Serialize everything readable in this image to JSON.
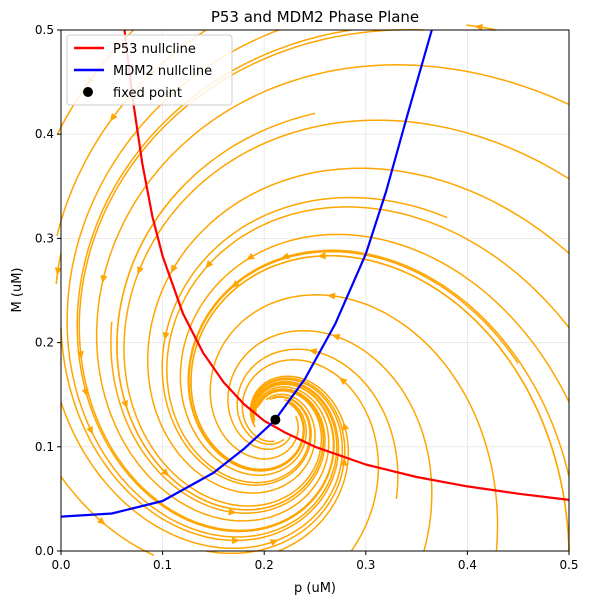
{
  "chart_data": {
    "type": "line",
    "title": "P53 and MDM2 Phase Plane",
    "xlabel": "p (uM)",
    "ylabel": "M (uM)",
    "xlim": [
      0.0,
      0.5
    ],
    "ylim": [
      0.0,
      0.5
    ],
    "xticks": [
      "0.0",
      "0.1",
      "0.2",
      "0.3",
      "0.4",
      "0.5"
    ],
    "yticks": [
      "0.0",
      "0.1",
      "0.2",
      "0.3",
      "0.4",
      "0.5"
    ],
    "grid": true,
    "legend_position": "top-left",
    "series": [
      {
        "name": "P53 nullcline",
        "color": "#ff0000",
        "x": [
          0.0625,
          0.07,
          0.08,
          0.09,
          0.1,
          0.12,
          0.14,
          0.16,
          0.18,
          0.2,
          0.22,
          0.25,
          0.3,
          0.35,
          0.4,
          0.45,
          0.5
        ],
        "y": [
          0.5,
          0.438,
          0.372,
          0.321,
          0.283,
          0.228,
          0.19,
          0.162,
          0.141,
          0.125,
          0.114,
          0.1,
          0.083,
          0.071,
          0.062,
          0.055,
          0.049
        ]
      },
      {
        "name": "MDM2 nullcline",
        "color": "#0000ff",
        "x": [
          0.0,
          0.05,
          0.1,
          0.15,
          0.18,
          0.21,
          0.24,
          0.27,
          0.3,
          0.32,
          0.34,
          0.365
        ],
        "y": [
          0.033,
          0.036,
          0.048,
          0.075,
          0.098,
          0.125,
          0.165,
          0.218,
          0.285,
          0.345,
          0.415,
          0.5
        ]
      }
    ],
    "fixed_point": {
      "name": "fixed point",
      "x": 0.211,
      "y": 0.126,
      "color": "#000000"
    },
    "streamplot": {
      "color": "#ffa500",
      "description_of_flow": "spiral trajectories converging on the fixed point"
    }
  }
}
